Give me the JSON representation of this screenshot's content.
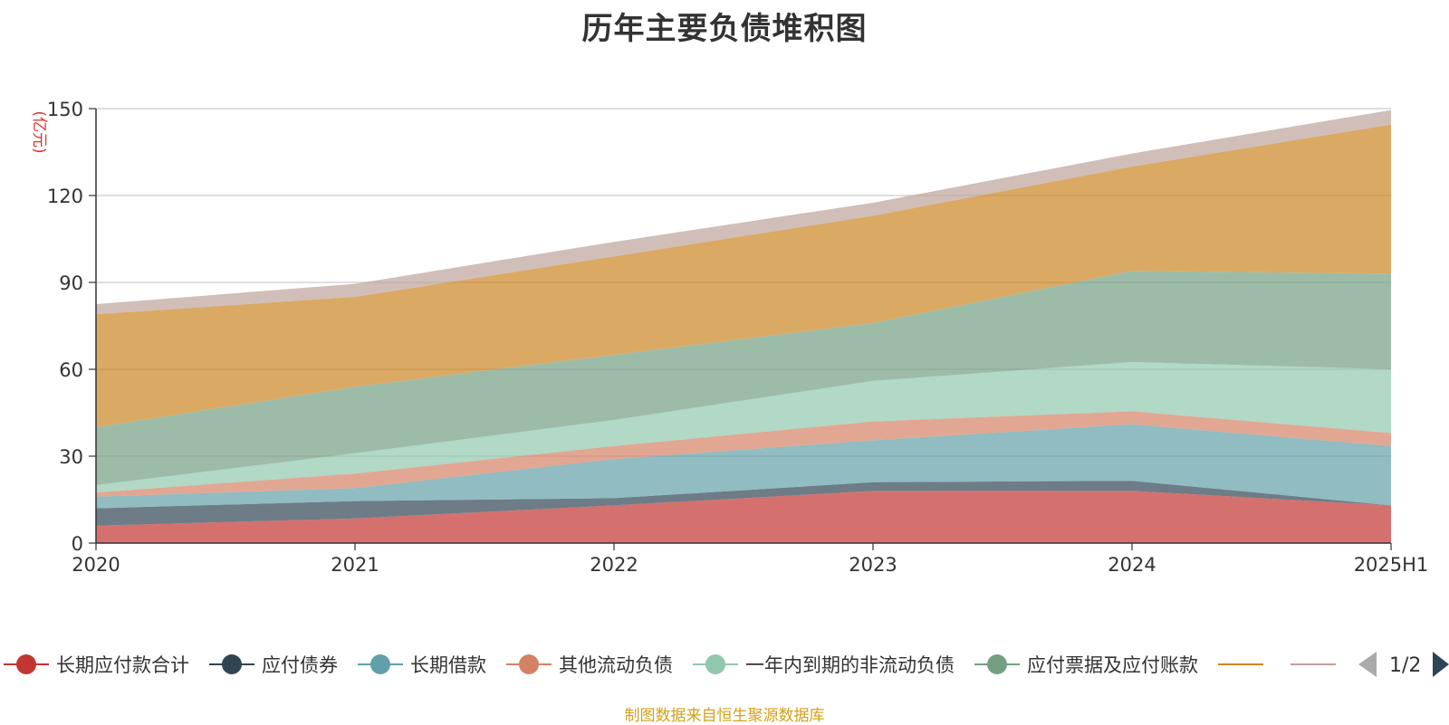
{
  "chart_data": {
    "type": "area",
    "stacked": true,
    "title": "历年主要负债堆积图",
    "unit_label": "(亿元)",
    "categories": [
      "2020",
      "2021",
      "2022",
      "2023",
      "2024",
      "2025H1"
    ],
    "y_ticks": [
      "0",
      "30",
      "60",
      "90",
      "120",
      "150"
    ],
    "ylim": [
      0,
      150
    ],
    "grid": true,
    "series": [
      {
        "name": "长期应付款合计",
        "color": "#c23531",
        "values": [
          6,
          8.5,
          13,
          18,
          18,
          13
        ]
      },
      {
        "name": "应付债券",
        "color": "#2f4554",
        "values": [
          6,
          6,
          2.5,
          3,
          3.5,
          0
        ]
      },
      {
        "name": "长期借款",
        "color": "#61a0a8",
        "values": [
          4,
          4.5,
          13.5,
          14.5,
          19.5,
          20.5
        ]
      },
      {
        "name": "其他流动负债",
        "color": "#d48265",
        "values": [
          1.5,
          5,
          4.5,
          6.5,
          4.5,
          4.5
        ]
      },
      {
        "name": "一年内到期的非流动负债",
        "color": "#91c7ae",
        "values": [
          2.5,
          7,
          9,
          14,
          17,
          22
        ]
      },
      {
        "name": "应付票据及应付账款",
        "color": "#749f83",
        "values": [
          20,
          23,
          22.5,
          20,
          31.5,
          33
        ]
      },
      {
        "name": "",
        "color": "#ca8622",
        "values": [
          39,
          31,
          34,
          37,
          36,
          51.5
        ]
      },
      {
        "name": "",
        "color": "#bda29a",
        "values": [
          3.5,
          4.5,
          5,
          4.5,
          4.5,
          5
        ]
      }
    ],
    "legend": {
      "placement": "bottom",
      "page": "1/2"
    }
  },
  "footer": {
    "source_note": "制图数据来自恒生聚源数据库"
  }
}
